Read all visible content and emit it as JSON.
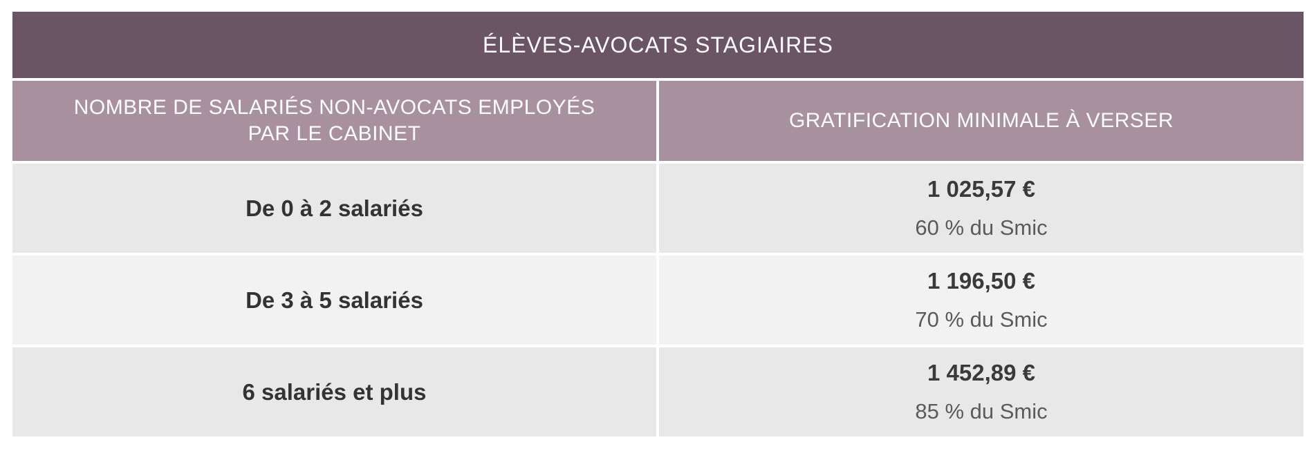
{
  "table": {
    "title": "ÉLÈVES-AVOCATS STAGIAIRES",
    "headers": {
      "left_line1": "NOMBRE DE SALARIÉS NON-AVOCATS EMPLOYÉS",
      "left_line2": "PAR LE CABINET",
      "right": "GRATIFICATION MINIMALE À VERSER"
    },
    "rows": [
      {
        "range": "De 0 à 2 salariés",
        "amount": "1 025,57 €",
        "percent": "60 % du Smic"
      },
      {
        "range": "De 3 à 5 salariés",
        "amount": "1 196,50 €",
        "percent": "70 % du Smic"
      },
      {
        "range": "6 salariés et plus",
        "amount": "1 452,89 €",
        "percent": "85 % du Smic"
      }
    ]
  },
  "colors": {
    "title_bg": "#6b5464",
    "header_bg": "#a8909f",
    "row_bg_a": "#e8e8e8",
    "row_bg_b": "#f2f2f2"
  }
}
